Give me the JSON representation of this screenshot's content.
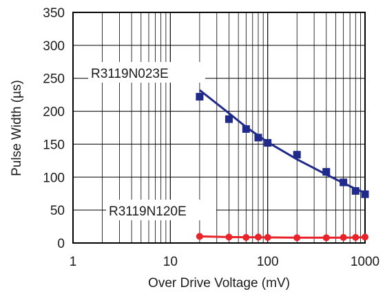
{
  "chart_data": {
    "type": "scatter",
    "xlabel": "Over Drive Voltage (mV)",
    "ylabel": "Pulse Width (µs)",
    "x_scale": "log",
    "xlim": [
      1,
      1000
    ],
    "ylim": [
      0,
      350
    ],
    "x_ticks": [
      1,
      10,
      100,
      1000
    ],
    "x_tick_labels": [
      "1",
      "10",
      "100",
      "1000"
    ],
    "y_ticks": [
      0,
      50,
      100,
      150,
      200,
      250,
      300,
      350
    ],
    "y_tick_labels": [
      "0",
      "50",
      "100",
      "150",
      "200",
      "250",
      "300",
      "350"
    ],
    "grid": true,
    "series": [
      {
        "name": "R3119N023E",
        "color": "#1f2a8a",
        "marker": "square",
        "x": [
          20,
          40,
          60,
          80,
          100,
          200,
          400,
          600,
          800,
          1000
        ],
        "y": [
          222,
          188,
          173,
          160,
          152,
          134,
          108,
          92,
          79,
          74
        ],
        "trend": [
          [
            20,
            232
          ],
          [
            40,
            197
          ],
          [
            60,
            176
          ],
          [
            80,
            163
          ],
          [
            100,
            153
          ],
          [
            200,
            127
          ],
          [
            400,
            104
          ],
          [
            600,
            91
          ],
          [
            800,
            82
          ],
          [
            1000,
            76
          ]
        ]
      },
      {
        "name": "R3119N120E",
        "color": "#e8232a",
        "marker": "circle",
        "x": [
          20,
          40,
          60,
          80,
          100,
          200,
          400,
          600,
          800,
          1000
        ],
        "y": [
          10,
          9,
          8.5,
          9,
          8.5,
          8,
          8,
          8.5,
          8.5,
          9
        ],
        "trend": [
          [
            20,
            10
          ],
          [
            40,
            9
          ],
          [
            60,
            8.8
          ],
          [
            80,
            8.6
          ],
          [
            100,
            8.5
          ],
          [
            200,
            8.2
          ],
          [
            400,
            8
          ],
          [
            600,
            8.2
          ],
          [
            800,
            8.4
          ],
          [
            1000,
            8.8
          ]
        ]
      }
    ]
  }
}
